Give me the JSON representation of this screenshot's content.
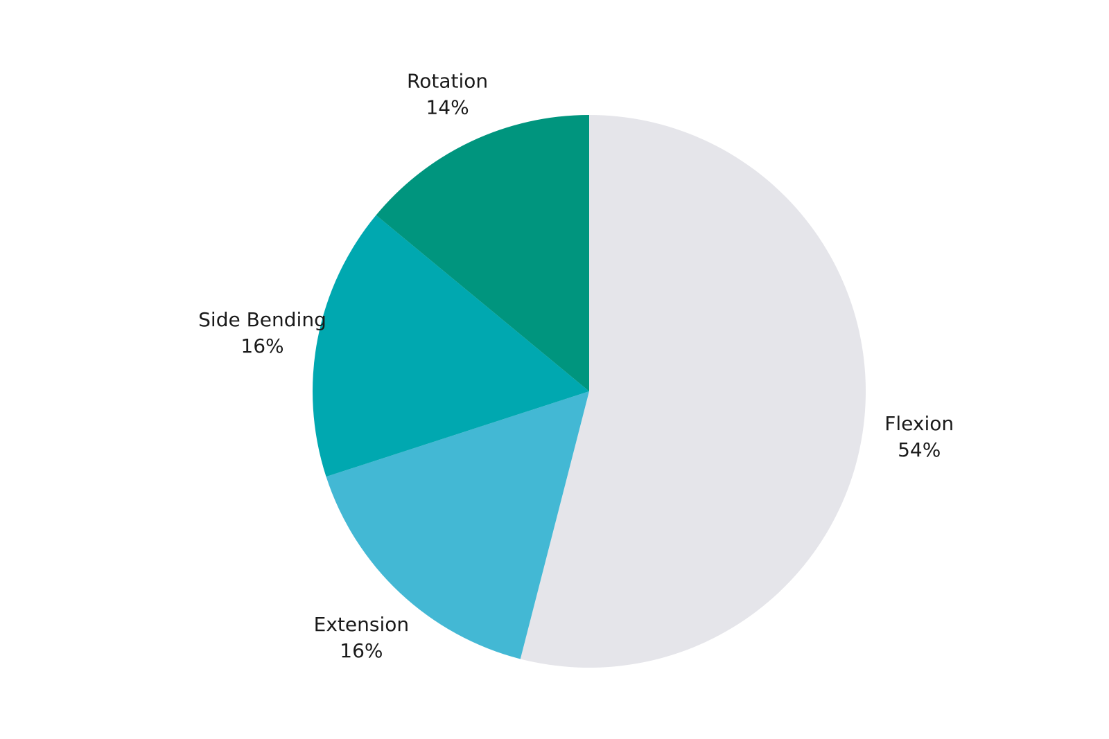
{
  "chart_data": {
    "type": "pie",
    "title": "",
    "start_angle_deg": 0,
    "direction": "clockwise",
    "slices": [
      {
        "label": "Flexion",
        "value": 54,
        "value_label": "54%",
        "color": "#e5e5ea"
      },
      {
        "label": "Extension",
        "value": 16,
        "value_label": "16%",
        "color": "#43b8d4"
      },
      {
        "label": "Side Bending",
        "value": 16,
        "value_label": "16%",
        "color": "#00a8b0"
      },
      {
        "label": "Rotation",
        "value": 14,
        "value_label": "14%",
        "color": "#00957e"
      }
    ]
  }
}
